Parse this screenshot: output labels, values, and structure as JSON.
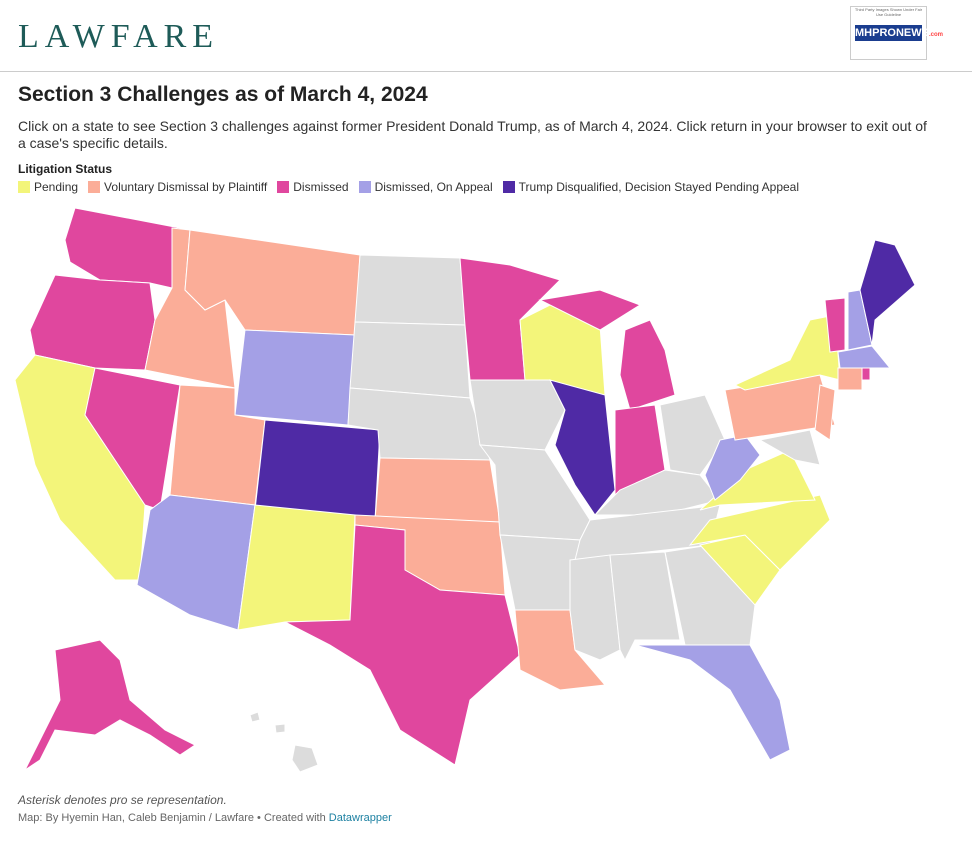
{
  "header": {
    "logo": "LAWFARE",
    "badge_note": "Third Party Images Shown Under Fair Use Guideline",
    "badge_name": "MHPRONEWS",
    "badge_domain": ".com"
  },
  "title": "Section 3 Challenges as of March 4, 2024",
  "description": "Click on a state to see Section 3 challenges against former President Donald Trump, as of March 4, 2024. Click return in your browser to exit out of a case's specific details.",
  "legend": {
    "title": "Litigation Status",
    "items": [
      {
        "label": "Pending",
        "color": "#f3f57a"
      },
      {
        "label": "Voluntary Dismissal by Plaintiff",
        "color": "#fbad98"
      },
      {
        "label": "Dismissed",
        "color": "#e0479e"
      },
      {
        "label": "Dismissed, On Appeal",
        "color": "#a4a0e6"
      },
      {
        "label": "Trump Disqualified, Decision Stayed Pending Appeal",
        "color": "#4f2aa5"
      }
    ]
  },
  "notes": "Asterisk denotes pro se representation.",
  "credit": "Map: By Hyemin Han, Caleb Benjamin / Lawfare • Created with ",
  "credit_link": "Datawrapper"
}
